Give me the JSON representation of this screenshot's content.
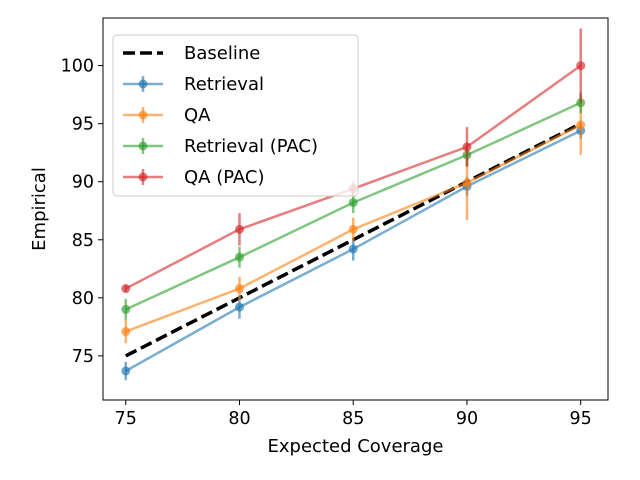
{
  "chart_data": {
    "type": "line",
    "title": "",
    "xlabel": "Expected Coverage",
    "ylabel": "Empirical",
    "xlim": [
      74,
      96.2
    ],
    "ylim": [
      71.2,
      104.1
    ],
    "xticks": [
      75,
      80,
      85,
      90,
      95
    ],
    "yticks": [
      75,
      80,
      85,
      90,
      95,
      100
    ],
    "grid": false,
    "legend_position": "top-left",
    "baseline": {
      "name": "Baseline",
      "x": [
        75,
        95
      ],
      "y": [
        75,
        95
      ],
      "color": "#000000"
    },
    "series": [
      {
        "name": "Retrieval",
        "color": "#1f77b4",
        "x": [
          75,
          80,
          85,
          90,
          95
        ],
        "y": [
          73.7,
          79.2,
          84.2,
          89.6,
          94.4
        ],
        "err": [
          0.8,
          1.0,
          1.0,
          0.8,
          0.7
        ]
      },
      {
        "name": "QA",
        "color": "#ff7f0e",
        "x": [
          75,
          80,
          85,
          90,
          95
        ],
        "y": [
          77.1,
          80.8,
          85.9,
          89.9,
          94.9
        ],
        "err": [
          1.0,
          1.0,
          1.0,
          3.2,
          2.6
        ]
      },
      {
        "name": "Retrieval (PAC)",
        "color": "#2ca02c",
        "x": [
          75,
          80,
          85,
          90,
          95
        ],
        "y": [
          79.0,
          83.5,
          88.2,
          92.3,
          96.8
        ],
        "err": [
          0.9,
          0.9,
          0.9,
          1.0,
          0.9
        ]
      },
      {
        "name": "QA (PAC)",
        "color": "#d62728",
        "x": [
          75,
          80,
          85,
          90,
          95
        ],
        "y": [
          80.8,
          85.9,
          89.4,
          93.0,
          100.0
        ],
        "err": [
          0.3,
          1.4,
          0.6,
          1.7,
          3.2
        ]
      }
    ]
  }
}
